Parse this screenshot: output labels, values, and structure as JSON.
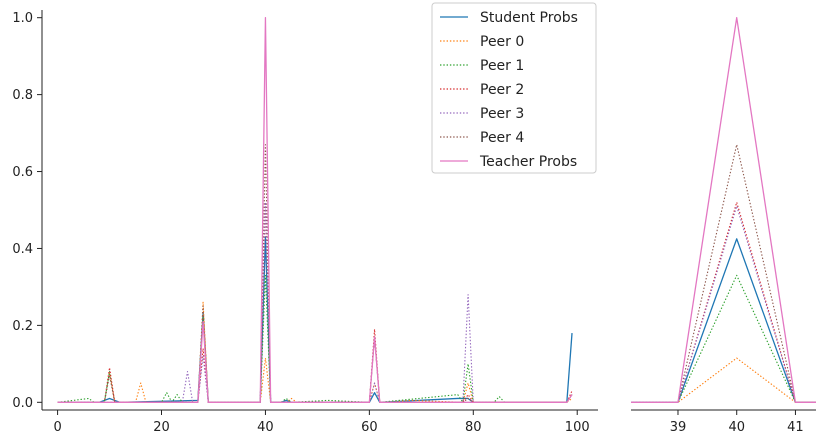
{
  "chart_data": {
    "type": "line",
    "legend": {
      "placement": "top-right",
      "entries": [
        "Student Probs",
        "Peer 0",
        "Peer 1",
        "Peer 2",
        "Peer 3",
        "Peer 4",
        "Teacher Probs"
      ]
    },
    "grid": false,
    "panels": [
      {
        "name": "full",
        "xlim": [
          -3,
          104
        ],
        "ylim": [
          -0.02,
          1.02
        ],
        "xticks": [
          0,
          20,
          40,
          60,
          80,
          100
        ],
        "yticks": [
          0.0,
          0.2,
          0.4,
          0.6,
          0.8,
          1.0
        ],
        "series": [
          {
            "name": "Student Probs",
            "color": "#1f77b4",
            "dash": "solid",
            "points": [
              [
                0,
                0
              ],
              [
                8,
                0
              ],
              [
                10,
                0.01
              ],
              [
                12,
                0
              ],
              [
                27,
                0.005
              ],
              [
                28,
                0.23
              ],
              [
                29,
                0
              ],
              [
                38,
                0
              ],
              [
                39,
                0
              ],
              [
                40,
                0.43
              ],
              [
                41,
                0
              ],
              [
                43,
                0
              ],
              [
                44,
                0.005
              ],
              [
                45,
                0
              ],
              [
                60,
                0
              ],
              [
                61,
                0.025
              ],
              [
                62,
                0
              ],
              [
                77,
                0.01
              ],
              [
                78,
                0.01
              ],
              [
                79,
                0.01
              ],
              [
                80,
                0
              ],
              [
                98,
                0
              ],
              [
                99,
                0.18
              ]
            ]
          },
          {
            "name": "Peer 0",
            "color": "#ff7f0e",
            "dash": "dotted",
            "points": [
              [
                0,
                0
              ],
              [
                9,
                0
              ],
              [
                10,
                0.075
              ],
              [
                11,
                0
              ],
              [
                15,
                0
              ],
              [
                16,
                0.05
              ],
              [
                17,
                0
              ],
              [
                27,
                0
              ],
              [
                28,
                0.26
              ],
              [
                29,
                0
              ],
              [
                39,
                0
              ],
              [
                40,
                0.115
              ],
              [
                41,
                0
              ],
              [
                44,
                0
              ],
              [
                45,
                0.01
              ],
              [
                46,
                0
              ],
              [
                60,
                0
              ],
              [
                61,
                0.05
              ],
              [
                62,
                0
              ],
              [
                68,
                0.005
              ],
              [
                78,
                0
              ],
              [
                79,
                0.05
              ],
              [
                80,
                0
              ],
              [
                98,
                0
              ],
              [
                99,
                0.01
              ]
            ]
          },
          {
            "name": "Peer 1",
            "color": "#2ca02c",
            "dash": "dotted",
            "points": [
              [
                0,
                0
              ],
              [
                6,
                0.01
              ],
              [
                7,
                0
              ],
              [
                9,
                0
              ],
              [
                10,
                0.08
              ],
              [
                11,
                0
              ],
              [
                20,
                0
              ],
              [
                21,
                0.025
              ],
              [
                22,
                0
              ],
              [
                23,
                0.02
              ],
              [
                24,
                0
              ],
              [
                27,
                0
              ],
              [
                28,
                0.22
              ],
              [
                29,
                0
              ],
              [
                39,
                0
              ],
              [
                40,
                0.33
              ],
              [
                41,
                0
              ],
              [
                43,
                0
              ],
              [
                44,
                0.01
              ],
              [
                45,
                0
              ],
              [
                52,
                0.005
              ],
              [
                60,
                0
              ],
              [
                61,
                0.17
              ],
              [
                62,
                0
              ],
              [
                77,
                0.02
              ],
              [
                78,
                0
              ],
              [
                79,
                0.1
              ],
              [
                80,
                0
              ],
              [
                84,
                0
              ],
              [
                85,
                0.015
              ],
              [
                86,
                0
              ],
              [
                98,
                0
              ],
              [
                99,
                0.02
              ]
            ]
          },
          {
            "name": "Peer 2",
            "color": "#d62728",
            "dash": "dotted",
            "points": [
              [
                0,
                0
              ],
              [
                9,
                0
              ],
              [
                10,
                0.09
              ],
              [
                11,
                0
              ],
              [
                27,
                0
              ],
              [
                28,
                0.14
              ],
              [
                29,
                0
              ],
              [
                39,
                0
              ],
              [
                40,
                0.52
              ],
              [
                41,
                0
              ],
              [
                60,
                0
              ],
              [
                61,
                0.19
              ],
              [
                62,
                0
              ],
              [
                78,
                0
              ],
              [
                79,
                0.02
              ],
              [
                80,
                0
              ],
              [
                98,
                0
              ],
              [
                99,
                0.03
              ]
            ]
          },
          {
            "name": "Peer 3",
            "color": "#9467bd",
            "dash": "dotted",
            "points": [
              [
                0,
                0
              ],
              [
                24,
                0
              ],
              [
                25,
                0.08
              ],
              [
                26,
                0
              ],
              [
                27,
                0
              ],
              [
                28,
                0.12
              ],
              [
                29,
                0
              ],
              [
                39,
                0
              ],
              [
                40,
                0.52
              ],
              [
                41,
                0
              ],
              [
                60,
                0
              ],
              [
                61,
                0.05
              ],
              [
                62,
                0
              ],
              [
                78,
                0
              ],
              [
                79,
                0.28
              ],
              [
                80,
                0
              ],
              [
                98,
                0
              ],
              [
                99,
                0.02
              ]
            ]
          },
          {
            "name": "Peer 4",
            "color": "#8c564b",
            "dash": "dotted",
            "points": [
              [
                0,
                0
              ],
              [
                9,
                0
              ],
              [
                10,
                0.07
              ],
              [
                11,
                0
              ],
              [
                27,
                0
              ],
              [
                28,
                0.25
              ],
              [
                29,
                0
              ],
              [
                39,
                0
              ],
              [
                40,
                0.67
              ],
              [
                41,
                0
              ],
              [
                60,
                0
              ],
              [
                61,
                0.17
              ],
              [
                62,
                0
              ],
              [
                78,
                0
              ],
              [
                79,
                0.01
              ],
              [
                80,
                0
              ],
              [
                98,
                0
              ],
              [
                99,
                0.02
              ]
            ]
          },
          {
            "name": "Teacher Probs",
            "color": "#e377c2",
            "dash": "solid",
            "points": [
              [
                0,
                0
              ],
              [
                27,
                0
              ],
              [
                28,
                0.21
              ],
              [
                29,
                0
              ],
              [
                39,
                0
              ],
              [
                40,
                1.0
              ],
              [
                41,
                0
              ],
              [
                60,
                0
              ],
              [
                61,
                0.17
              ],
              [
                62,
                0
              ],
              [
                98,
                0
              ],
              [
                99,
                0.02
              ]
            ]
          }
        ]
      },
      {
        "name": "zoom",
        "xlim": [
          38.2,
          41.35
        ],
        "ylim": [
          -0.02,
          1.02
        ],
        "xticks": [
          39,
          40,
          41
        ],
        "yticks": [],
        "series": [
          {
            "name": "Student Probs",
            "color": "#1f77b4",
            "dash": "solid",
            "points": [
              [
                38,
                0
              ],
              [
                39,
                0
              ],
              [
                40,
                0.425
              ],
              [
                41,
                0
              ],
              [
                42,
                0
              ]
            ]
          },
          {
            "name": "Peer 0",
            "color": "#ff7f0e",
            "dash": "dotted",
            "points": [
              [
                38,
                0
              ],
              [
                39,
                0
              ],
              [
                40,
                0.115
              ],
              [
                41,
                0
              ],
              [
                42,
                0
              ]
            ]
          },
          {
            "name": "Peer 1",
            "color": "#2ca02c",
            "dash": "dotted",
            "points": [
              [
                38,
                0
              ],
              [
                39,
                0
              ],
              [
                40,
                0.33
              ],
              [
                41,
                0
              ],
              [
                42,
                0
              ]
            ]
          },
          {
            "name": "Peer 2",
            "color": "#d62728",
            "dash": "dotted",
            "points": [
              [
                38,
                0
              ],
              [
                39,
                0
              ],
              [
                40,
                0.52
              ],
              [
                41,
                0
              ],
              [
                42,
                0
              ]
            ]
          },
          {
            "name": "Peer 3",
            "color": "#9467bd",
            "dash": "dotted",
            "points": [
              [
                38,
                0
              ],
              [
                39,
                0
              ],
              [
                40,
                0.51
              ],
              [
                41,
                0
              ],
              [
                42,
                0
              ]
            ]
          },
          {
            "name": "Peer 4",
            "color": "#8c564b",
            "dash": "dotted",
            "points": [
              [
                38,
                0
              ],
              [
                39,
                0
              ],
              [
                40,
                0.67
              ],
              [
                41,
                0
              ],
              [
                42,
                0
              ]
            ]
          },
          {
            "name": "Teacher Probs",
            "color": "#e377c2",
            "dash": "solid",
            "points": [
              [
                38,
                0
              ],
              [
                39,
                0
              ],
              [
                40,
                1.0
              ],
              [
                41,
                0
              ],
              [
                42,
                0
              ]
            ]
          }
        ]
      }
    ]
  }
}
